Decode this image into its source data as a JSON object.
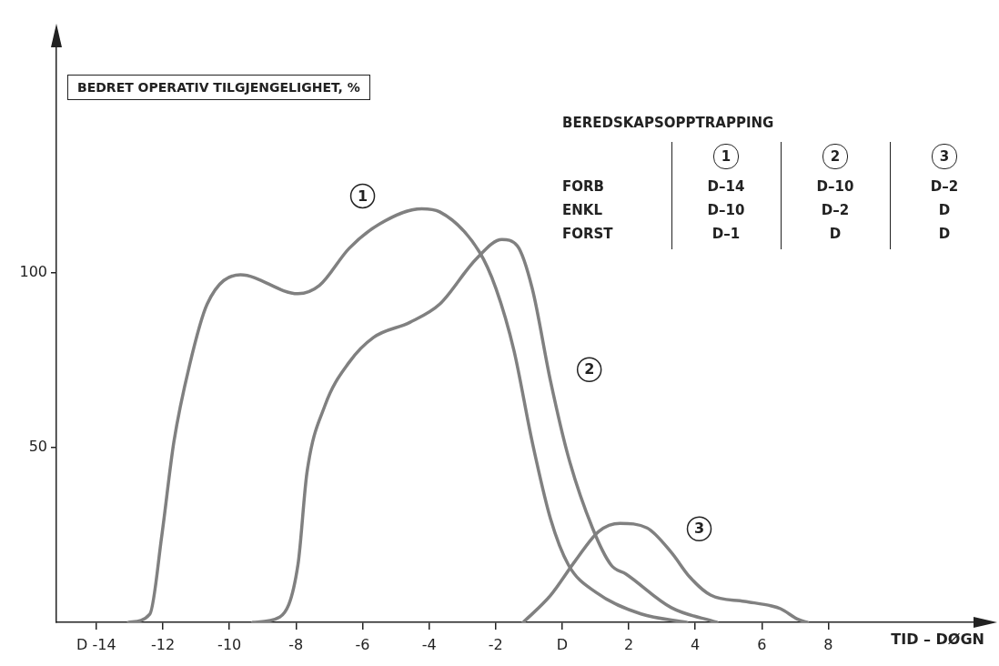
{
  "chart_data": {
    "type": "line",
    "ylabel": "BEDRET OPERATIV TILGJENGELIGHET, %",
    "xlabel": "TID – DØGN",
    "xlim": [
      -15.2,
      12.8
    ],
    "ylim": [
      0,
      165
    ],
    "xticks": [
      {
        "value": -14,
        "label": "D -14"
      },
      -12,
      -10,
      -8,
      -6,
      -4,
      -2,
      {
        "value": 0,
        "label": "D"
      },
      2,
      4,
      6,
      8
    ],
    "yticks": [
      50,
      100
    ],
    "grid": false,
    "legend": false,
    "marker": "none",
    "series": [
      {
        "name": "1",
        "color": "#808080",
        "x": [
          -13.03,
          -12.39,
          -12.03,
          -11.67,
          -11.2,
          -10.67,
          -9.67,
          -7.94,
          -7.3,
          -6.4,
          -5.48,
          -4.22,
          -3.68,
          -2.49,
          -1.99,
          -1.45,
          -0.9,
          -0.35,
          0.19,
          1.01,
          2.37,
          3.74
        ],
        "values": [
          0,
          2.4,
          25,
          51.6,
          73.5,
          91,
          99.4,
          94,
          96.3,
          107,
          114,
          118.3,
          117.4,
          106,
          95.5,
          77.8,
          51.6,
          29.6,
          16.4,
          8.6,
          2.4,
          0
        ]
      },
      {
        "name": "2",
        "color": "#808080",
        "x": [
          -9.3,
          -8.49,
          -7.94,
          -7.67,
          -7.13,
          -6.4,
          -5.67,
          -4.58,
          -3.68,
          -2.58,
          -1.81,
          -1.35,
          -0.9,
          -0.35,
          0.19,
          0.91,
          1.47,
          1.92,
          3.28,
          4.65
        ],
        "values": [
          0,
          1.5,
          16.5,
          42.8,
          62,
          74.4,
          81.5,
          85.8,
          91,
          104,
          109.5,
          107.7,
          95.5,
          69,
          47.2,
          27,
          16.4,
          13.8,
          4.2,
          0
        ]
      },
      {
        "name": "3",
        "color": "#808080",
        "x": [
          -1.17,
          -0.35,
          0.38,
          1.1,
          1.74,
          2.55,
          3.28,
          3.83,
          4.46,
          5.48,
          6.29,
          6.56,
          7.1,
          7.37
        ],
        "values": [
          0,
          7.7,
          17.4,
          26,
          28.3,
          27,
          20,
          13,
          7.8,
          6,
          4.7,
          3.9,
          0.8,
          0
        ]
      }
    ],
    "annotations": [
      "BEREDSKAPSOPPTRAPPING",
      "1",
      "2",
      "3",
      "FORB",
      "D–14",
      "D–10",
      "D–2",
      "ENKL",
      "D–10",
      "D–2",
      "D",
      "FORST",
      "D–1",
      "D",
      "D"
    ]
  }
}
